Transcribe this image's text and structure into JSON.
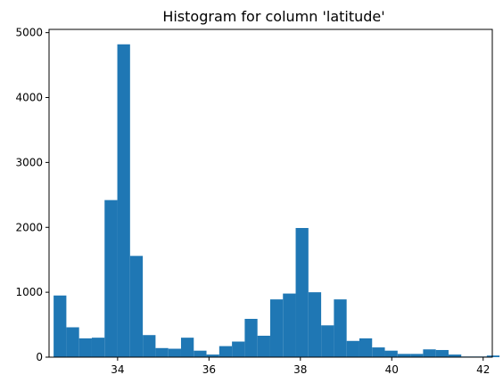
{
  "chart_data": {
    "type": "bar",
    "title": "Histogram for column 'latitude'",
    "xlabel": "",
    "ylabel": "",
    "bar_color": "#1f77b4",
    "xlim": [
      32.5,
      42.2
    ],
    "ylim": [
      0,
      5050
    ],
    "xticks": [
      34,
      36,
      38,
      40,
      42
    ],
    "yticks": [
      0,
      1000,
      2000,
      3000,
      4000,
      5000
    ],
    "bins_start": 32.6,
    "bin_width": 0.2788,
    "values": [
      950,
      460,
      290,
      300,
      2420,
      4820,
      1560,
      340,
      140,
      130,
      300,
      100,
      40,
      170,
      240,
      590,
      330,
      890,
      980,
      1990,
      1000,
      490,
      890,
      250,
      290,
      150,
      100,
      50,
      50,
      120,
      110,
      40,
      10,
      10,
      25,
      0
    ],
    "grid": false,
    "legend": "none"
  }
}
